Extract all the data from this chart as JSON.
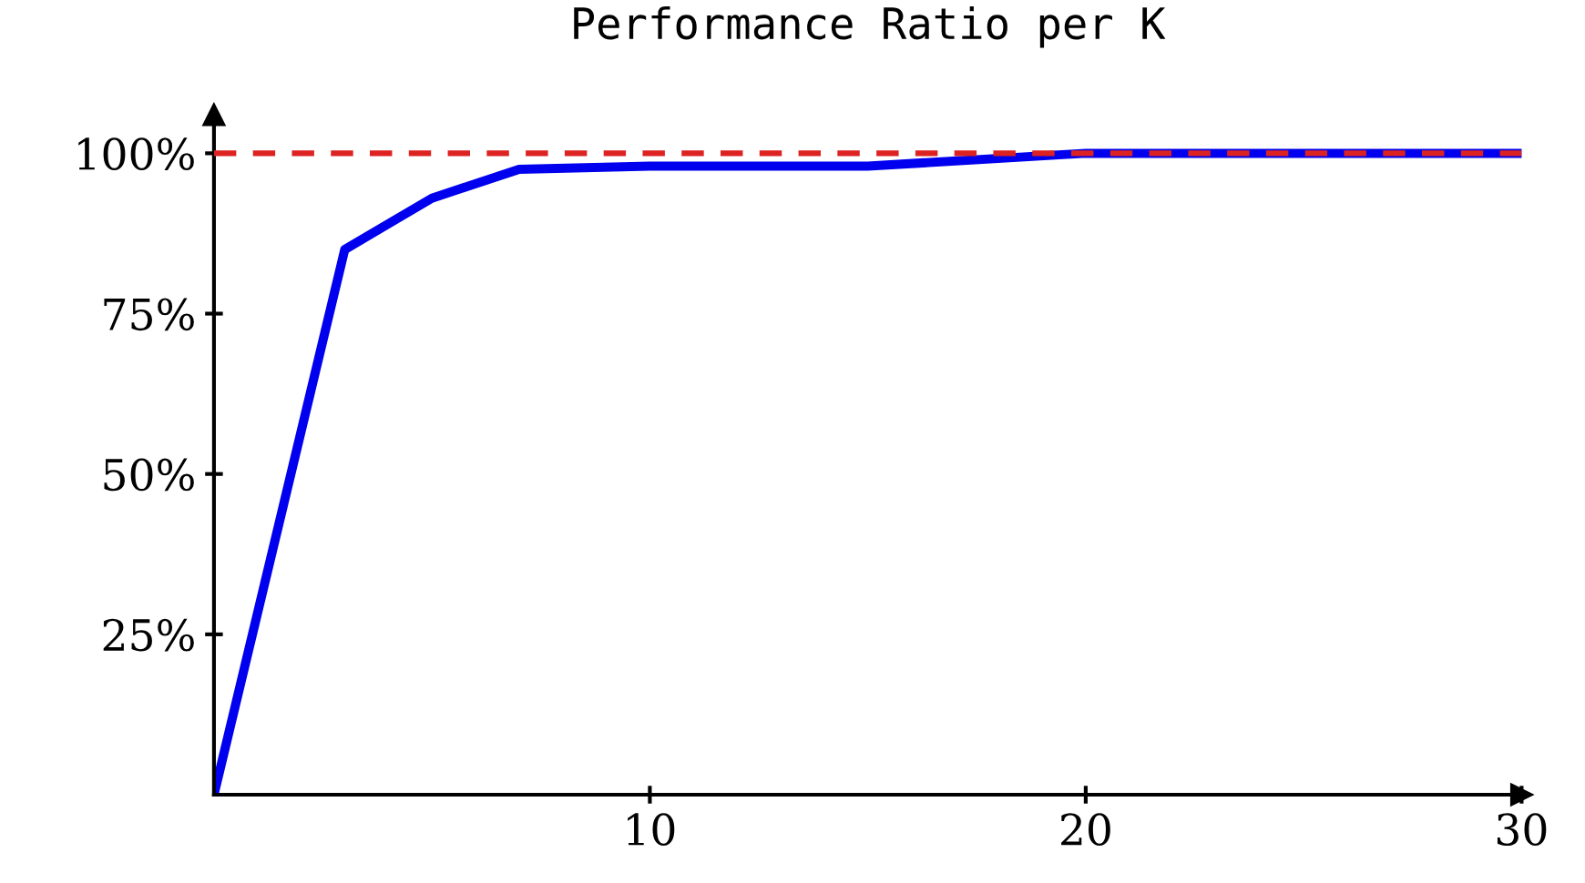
{
  "chart_data": {
    "type": "line",
    "title": "Performance Ratio per K",
    "x": [
      0,
      3,
      5,
      7,
      10,
      15,
      20,
      30
    ],
    "series": [
      {
        "color": "#0000ee",
        "values": [
          0,
          85,
          93,
          97.5,
          98,
          98,
          100,
          100
        ]
      }
    ],
    "xlim": [
      0,
      30
    ],
    "ylim": [
      0,
      106
    ],
    "xticks": [
      10,
      20,
      30
    ],
    "yticks": [
      {
        "value": 25,
        "label": "25%"
      },
      {
        "value": 50,
        "label": "50%"
      },
      {
        "value": 75,
        "label": "75%"
      },
      {
        "value": 100,
        "label": "100%"
      }
    ],
    "ref_lines": [
      {
        "axis": "y",
        "value": 100,
        "color": "#dd2222",
        "line_style": "dashed"
      }
    ],
    "grid": false,
    "legend": false
  }
}
